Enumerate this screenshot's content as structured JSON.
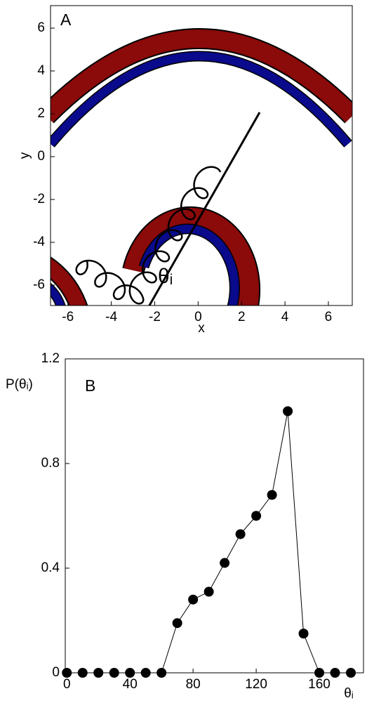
{
  "chart_data": [
    {
      "type": "figure",
      "panel_label": "A",
      "xlabel": "x",
      "ylabel": "y",
      "annotation": "θᵢ",
      "xlim": [
        -6.8,
        7.1
      ],
      "ylim": [
        -6.95,
        7.05
      ],
      "xticks": [
        -6,
        -4,
        -2,
        0,
        2,
        4,
        6
      ],
      "yticks": [
        -6,
        -4,
        -2,
        0,
        2,
        4,
        6
      ]
    },
    {
      "type": "line",
      "panel_label": "B",
      "xlabel": "θᵢ",
      "ylabel": "P(θᵢ)",
      "color": "#000000",
      "x": [
        0,
        10,
        20,
        30,
        40,
        50,
        60,
        70,
        80,
        90,
        100,
        110,
        120,
        130,
        140,
        150,
        160,
        170,
        180
      ],
      "values": [
        0,
        0,
        0,
        0,
        0,
        0,
        0,
        0.19,
        0.28,
        0.31,
        0.42,
        0.53,
        0.6,
        0.68,
        1.0,
        0.15,
        0,
        0,
        0
      ],
      "xlim": [
        -1,
        188
      ],
      "ylim": [
        0,
        1.2
      ],
      "xticks": [
        0,
        40,
        80,
        120,
        160
      ],
      "yticks": [
        0,
        0.4,
        0.8,
        1.2
      ]
    }
  ]
}
